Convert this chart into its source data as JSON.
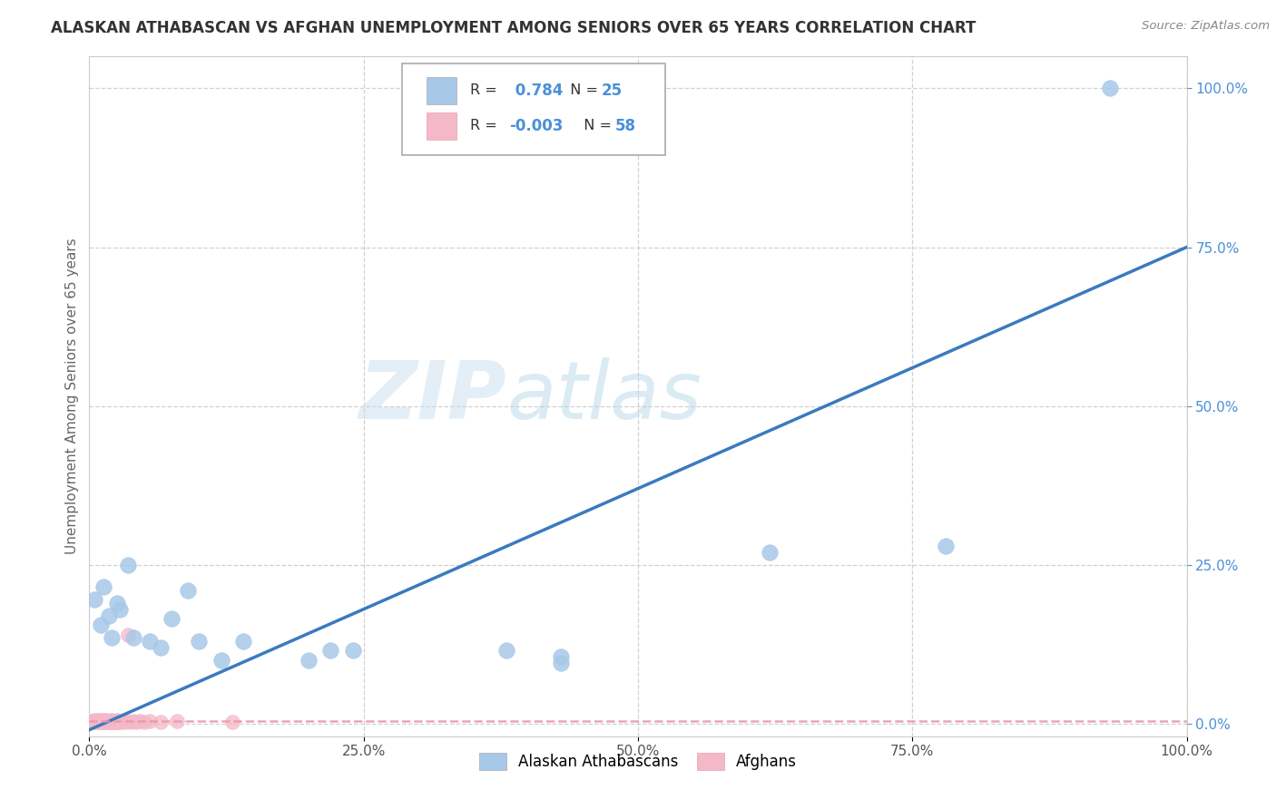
{
  "title": "ALASKAN ATHABASCAN VS AFGHAN UNEMPLOYMENT AMONG SENIORS OVER 65 YEARS CORRELATION CHART",
  "source": "Source: ZipAtlas.com",
  "ylabel": "Unemployment Among Seniors over 65 years",
  "blue_label": "Alaskan Athabascans",
  "pink_label": "Afghans",
  "blue_R": 0.784,
  "blue_N": 25,
  "pink_R": -0.003,
  "pink_N": 58,
  "blue_color": "#a8c8e8",
  "blue_edge_color": "#a8c8e8",
  "blue_line_color": "#3a7abf",
  "pink_color": "#f4b8c8",
  "pink_edge_color": "#f4b8c8",
  "pink_line_color": "#e896aa",
  "blue_x": [
    0.005,
    0.01,
    0.013,
    0.018,
    0.02,
    0.025,
    0.028,
    0.035,
    0.04,
    0.055,
    0.065,
    0.075,
    0.09,
    0.1,
    0.12,
    0.14,
    0.2,
    0.22,
    0.24,
    0.38,
    0.43,
    0.43,
    0.62,
    0.78,
    0.93
  ],
  "blue_y": [
    0.195,
    0.155,
    0.215,
    0.17,
    0.135,
    0.19,
    0.18,
    0.25,
    0.135,
    0.13,
    0.12,
    0.165,
    0.21,
    0.13,
    0.1,
    0.13,
    0.1,
    0.115,
    0.115,
    0.115,
    0.095,
    0.105,
    0.27,
    0.28,
    1.0
  ],
  "pink_x": [
    0.002,
    0.003,
    0.004,
    0.005,
    0.006,
    0.007,
    0.007,
    0.008,
    0.008,
    0.009,
    0.009,
    0.01,
    0.01,
    0.01,
    0.011,
    0.011,
    0.012,
    0.012,
    0.013,
    0.013,
    0.014,
    0.014,
    0.015,
    0.015,
    0.015,
    0.016,
    0.016,
    0.017,
    0.017,
    0.018,
    0.018,
    0.019,
    0.02,
    0.02,
    0.021,
    0.022,
    0.022,
    0.023,
    0.023,
    0.024,
    0.025,
    0.025,
    0.026,
    0.027,
    0.028,
    0.03,
    0.032,
    0.034,
    0.035,
    0.037,
    0.04,
    0.043,
    0.046,
    0.05,
    0.055,
    0.065,
    0.08,
    0.13
  ],
  "pink_y": [
    0.003,
    0.004,
    0.003,
    0.005,
    0.004,
    0.004,
    0.005,
    0.003,
    0.004,
    0.003,
    0.004,
    0.003,
    0.004,
    0.005,
    0.003,
    0.004,
    0.003,
    0.004,
    0.003,
    0.005,
    0.003,
    0.004,
    0.003,
    0.004,
    0.005,
    0.003,
    0.004,
    0.003,
    0.004,
    0.003,
    0.004,
    0.003,
    0.004,
    0.005,
    0.003,
    0.003,
    0.004,
    0.003,
    0.004,
    0.003,
    0.004,
    0.005,
    0.003,
    0.004,
    0.003,
    0.004,
    0.003,
    0.004,
    0.14,
    0.003,
    0.004,
    0.003,
    0.004,
    0.003,
    0.004,
    0.003,
    0.004,
    0.003
  ],
  "watermark_zip": "ZIP",
  "watermark_atlas": "atlas",
  "background_color": "#ffffff",
  "grid_color": "#cccccc",
  "title_color": "#333333",
  "axis_label_color": "#666666",
  "tick_label_color": "#555555",
  "right_tick_color": "#4a90d9",
  "xlim": [
    0.0,
    1.0
  ],
  "ylim": [
    -0.02,
    1.05
  ],
  "xticks": [
    0.0,
    0.25,
    0.5,
    0.75,
    1.0
  ],
  "xticklabels": [
    "0.0%",
    "25.0%",
    "50.0%",
    "75.0%",
    "100.0%"
  ],
  "yticks_right": [
    0.0,
    0.25,
    0.5,
    0.75,
    1.0
  ],
  "yticklabels_right": [
    "0.0%",
    "25.0%",
    "50.0%",
    "75.0%",
    "100.0%"
  ],
  "legend_R_color": "#4a90d9",
  "legend_N_color": "#4a90d9"
}
